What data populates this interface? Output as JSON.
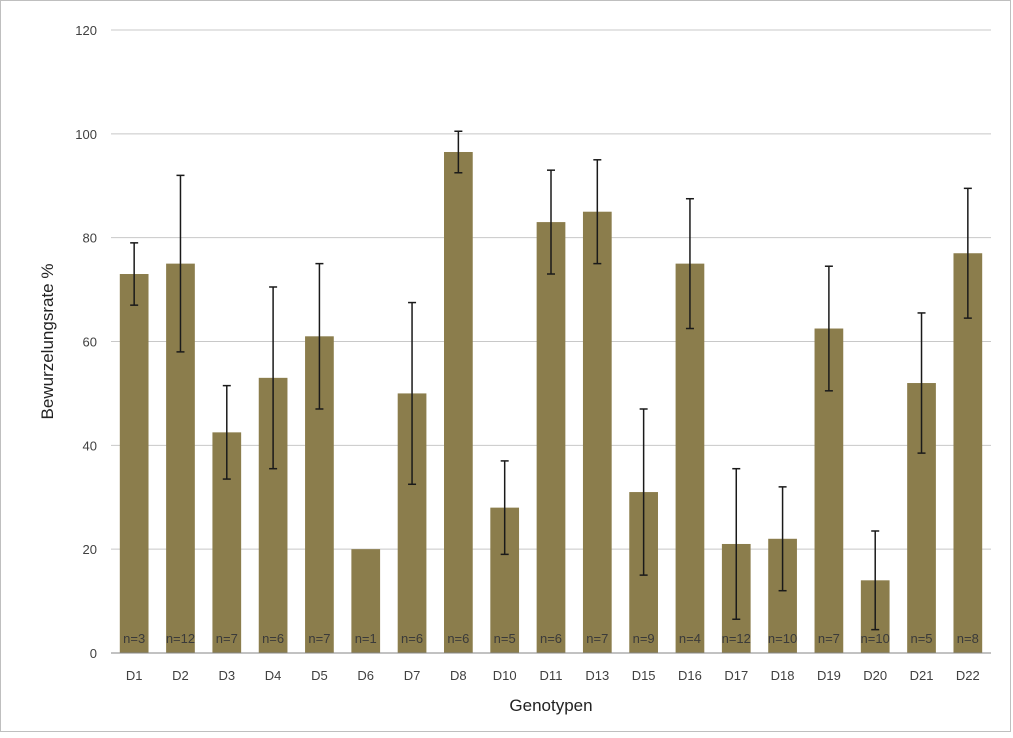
{
  "chart_data": {
    "type": "bar",
    "title": "",
    "xlabel": "Genotypen",
    "ylabel": "Bewurzelungsrate %",
    "ylim": [
      0,
      120
    ],
    "yticks": [
      0,
      20,
      40,
      60,
      80,
      100,
      120
    ],
    "grid": true,
    "bar_color": "#8b7d4c",
    "categories": [
      "D1",
      "D2",
      "D3",
      "D4",
      "D5",
      "D6",
      "D7",
      "D8",
      "D10",
      "D11",
      "D13",
      "D15",
      "D16",
      "D17",
      "D18",
      "D19",
      "D20",
      "D21",
      "D22"
    ],
    "values": [
      73,
      75,
      42.5,
      53,
      61,
      20,
      50,
      96.5,
      28,
      83,
      85,
      31,
      75,
      21,
      22,
      62.5,
      14,
      52,
      77
    ],
    "errors": [
      6,
      17,
      9,
      17.5,
      14,
      0,
      17.5,
      4,
      9,
      10,
      10,
      16,
      12.5,
      14.5,
      10,
      12,
      9.5,
      13.5,
      12.5
    ],
    "sample_labels": [
      "n=3",
      "n=12",
      "n=7",
      "n=6",
      "n=7",
      "n=1",
      "n=6",
      "n=6",
      "n=5",
      "n=6",
      "n=7",
      "n=9",
      "n=4",
      "n=12",
      "n=10",
      "n=7",
      "n=10",
      "n=5",
      "n=8"
    ]
  }
}
